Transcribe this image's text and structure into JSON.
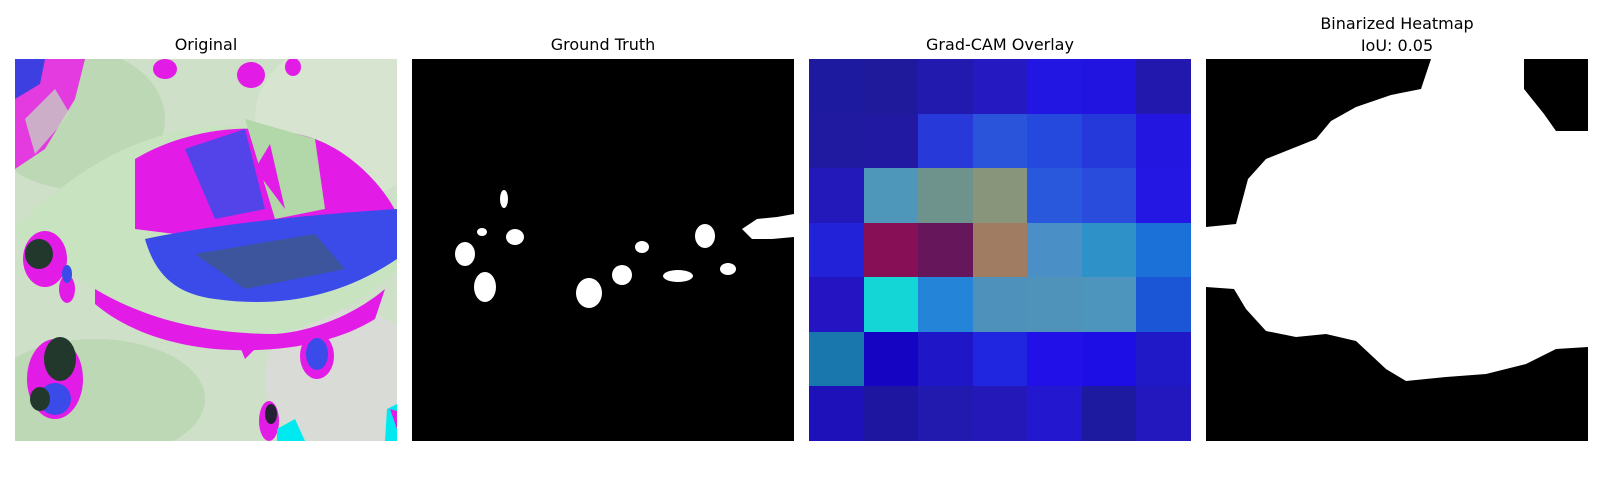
{
  "panels": [
    {
      "title": "Original"
    },
    {
      "title": "Ground Truth"
    },
    {
      "title": "Grad-CAM Overlay"
    },
    {
      "title_line1": "Binarized Heatmap",
      "title_line2": "IoU: 0.05"
    }
  ],
  "colors": {
    "background": "#ffffff",
    "mask_fg": "#ffffff",
    "mask_bg": "#000000",
    "leaf_pale": "#c9e3c2",
    "magenta": "#e21be6",
    "blue": "#3a4bea"
  },
  "gradcam_grid": [
    [
      "#1e1aa0",
      "#1f1a9c",
      "#221aae",
      "#2519c2",
      "#2216e3",
      "#2114e0",
      "#2318ad"
    ],
    [
      "#1f1a9f",
      "#2219a3",
      "#273ad9",
      "#2a54da",
      "#2549dd",
      "#2538da",
      "#2216e0"
    ],
    [
      "#2318b9",
      "#4f97ba",
      "#6d938c",
      "#88957a",
      "#2a58dc",
      "#2a4cdc",
      "#2417e3"
    ],
    [
      "#2222d9",
      "#870f56",
      "#66165a",
      "#a07d62",
      "#4a8fc6",
      "#2e92c9",
      "#1b71d7"
    ],
    [
      "#2414c2",
      "#15d6d6",
      "#2485d8",
      "#4e92bc",
      "#4f93ba",
      "#4d95bd",
      "#1a56d6"
    ],
    [
      "#1977ad",
      "#1604c3",
      "#1f16c7",
      "#2026df",
      "#2210e8",
      "#1e0ee6",
      "#2019c7"
    ],
    [
      "#1f11b9",
      "#1e15a0",
      "#221aae",
      "#2419b8",
      "#2318cf",
      "#1e1aa0",
      "#2218bd"
    ]
  ]
}
